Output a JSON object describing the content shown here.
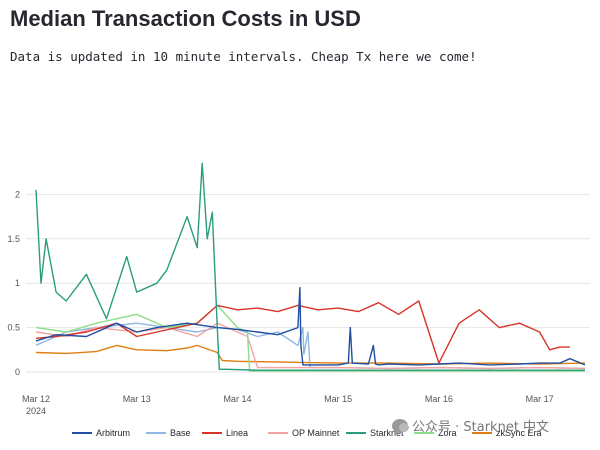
{
  "title": "Median Transaction Costs in USD",
  "subtitle": "Data is updated in 10 minute intervals. Cheap Tx here we come!",
  "watermark": "公众号 · Starknet 中文",
  "colors": {
    "Arbitrum": "#1f4ea3",
    "Base": "#8fb7e2",
    "Linea": "#d6342b",
    "OP Mainnet": "#f2a5a0",
    "Starknet": "#2a9d7f",
    "Zora": "#8fdd8a",
    "zkSync Era": "#e07d10"
  },
  "chart_data": {
    "type": "line",
    "title": "Median Transaction Costs in USD",
    "xlabel": "",
    "ylabel": "",
    "xlim": [
      12.0,
      17.5
    ],
    "ylim": [
      0,
      2.5
    ],
    "y_ticks": [
      0,
      0.5,
      1,
      1.5,
      2
    ],
    "y_tick_labels": [
      "0",
      "0.5",
      "1",
      "1.5",
      "2"
    ],
    "x_ticks": [
      12,
      13,
      14,
      15,
      16,
      17
    ],
    "x_tick_labels": [
      "Mar 12",
      "Mar 13",
      "Mar 14",
      "Mar 15",
      "Mar 16",
      "Mar 17"
    ],
    "x_year_label": "2024",
    "grid": "horizontal",
    "legend_position": "bottom",
    "series": [
      {
        "name": "Arbitrum",
        "x": [
          12.0,
          12.2,
          12.5,
          12.8,
          13.0,
          13.2,
          13.5,
          13.8,
          14.0,
          14.2,
          14.4,
          14.6,
          14.62,
          14.63,
          14.65,
          14.9,
          15.0,
          15.1,
          15.12,
          15.14,
          15.3,
          15.35,
          15.37,
          15.4,
          15.5,
          15.8,
          16.0,
          16.2,
          16.5,
          16.8,
          17.0,
          17.2,
          17.3,
          17.45
        ],
        "y": [
          0.35,
          0.42,
          0.4,
          0.55,
          0.45,
          0.5,
          0.55,
          0.5,
          0.48,
          0.45,
          0.42,
          0.5,
          0.95,
          0.3,
          0.08,
          0.08,
          0.08,
          0.1,
          0.5,
          0.1,
          0.09,
          0.3,
          0.09,
          0.08,
          0.09,
          0.08,
          0.09,
          0.1,
          0.08,
          0.09,
          0.1,
          0.1,
          0.15,
          0.08
        ]
      },
      {
        "name": "Base",
        "x": [
          12.0,
          12.3,
          12.6,
          13.0,
          13.3,
          13.6,
          13.8,
          14.0,
          14.2,
          14.4,
          14.6,
          14.65,
          14.66,
          14.7,
          14.72,
          15.0,
          15.5,
          16.0,
          16.5,
          17.0,
          17.45
        ],
        "y": [
          0.3,
          0.45,
          0.5,
          0.55,
          0.5,
          0.45,
          0.5,
          0.48,
          0.4,
          0.45,
          0.3,
          0.5,
          0.2,
          0.45,
          0.05,
          0.05,
          0.04,
          0.05,
          0.04,
          0.05,
          0.04
        ]
      },
      {
        "name": "Linea",
        "x": [
          12.0,
          12.2,
          12.5,
          12.8,
          13.0,
          13.2,
          13.4,
          13.6,
          13.8,
          14.0,
          14.2,
          14.4,
          14.6,
          14.8,
          15.0,
          15.2,
          15.4,
          15.6,
          15.8,
          16.0,
          16.2,
          16.4,
          16.6,
          16.8,
          17.0,
          17.1,
          17.2,
          17.3
        ],
        "y": [
          0.38,
          0.4,
          0.45,
          0.55,
          0.4,
          0.45,
          0.5,
          0.55,
          0.75,
          0.7,
          0.72,
          0.68,
          0.75,
          0.7,
          0.72,
          0.68,
          0.78,
          0.65,
          0.8,
          0.1,
          0.55,
          0.7,
          0.5,
          0.55,
          0.45,
          0.25,
          0.28,
          0.28
        ]
      },
      {
        "name": "OP Mainnet",
        "x": [
          12.0,
          12.3,
          12.6,
          13.0,
          13.3,
          13.6,
          13.8,
          14.0,
          14.1,
          14.2,
          14.5,
          15.0,
          15.5,
          16.0,
          16.5,
          17.0,
          17.45
        ],
        "y": [
          0.45,
          0.4,
          0.5,
          0.45,
          0.5,
          0.4,
          0.55,
          0.45,
          0.4,
          0.05,
          0.05,
          0.05,
          0.04,
          0.05,
          0.04,
          0.05,
          0.04
        ]
      },
      {
        "name": "Starknet",
        "x": [
          12.0,
          12.05,
          12.1,
          12.2,
          12.3,
          12.5,
          12.7,
          12.9,
          13.0,
          13.2,
          13.3,
          13.5,
          13.6,
          13.65,
          13.7,
          13.75,
          13.8,
          13.82,
          13.9,
          14.2,
          14.5,
          15.0,
          15.5,
          16.0,
          16.5,
          17.0,
          17.45
        ],
        "y": [
          2.05,
          1.0,
          1.5,
          0.9,
          0.8,
          1.1,
          0.6,
          1.3,
          0.9,
          1.0,
          1.15,
          1.75,
          1.4,
          2.35,
          1.5,
          1.8,
          0.5,
          0.03,
          0.03,
          0.02,
          0.02,
          0.02,
          0.02,
          0.02,
          0.02,
          0.02,
          0.02
        ]
      },
      {
        "name": "Zora",
        "x": [
          12.0,
          12.3,
          12.6,
          13.0,
          13.3,
          13.6,
          13.8,
          14.0,
          14.1,
          14.12,
          14.5,
          15.0,
          15.5,
          16.0,
          16.5,
          17.0,
          17.45
        ],
        "y": [
          0.5,
          0.45,
          0.55,
          0.65,
          0.5,
          0.55,
          0.75,
          0.5,
          0.45,
          0.01,
          0.01,
          0.01,
          0.01,
          0.01,
          0.01,
          0.01,
          0.01
        ]
      },
      {
        "name": "zkSync Era",
        "x": [
          12.0,
          12.3,
          12.6,
          12.8,
          13.0,
          13.3,
          13.5,
          13.6,
          13.8,
          13.85,
          14.0,
          14.5,
          15.0,
          15.5,
          16.0,
          16.5,
          17.0,
          17.45
        ],
        "y": [
          0.22,
          0.21,
          0.23,
          0.3,
          0.25,
          0.24,
          0.27,
          0.3,
          0.22,
          0.13,
          0.12,
          0.11,
          0.1,
          0.1,
          0.09,
          0.1,
          0.09,
          0.1
        ]
      }
    ]
  }
}
